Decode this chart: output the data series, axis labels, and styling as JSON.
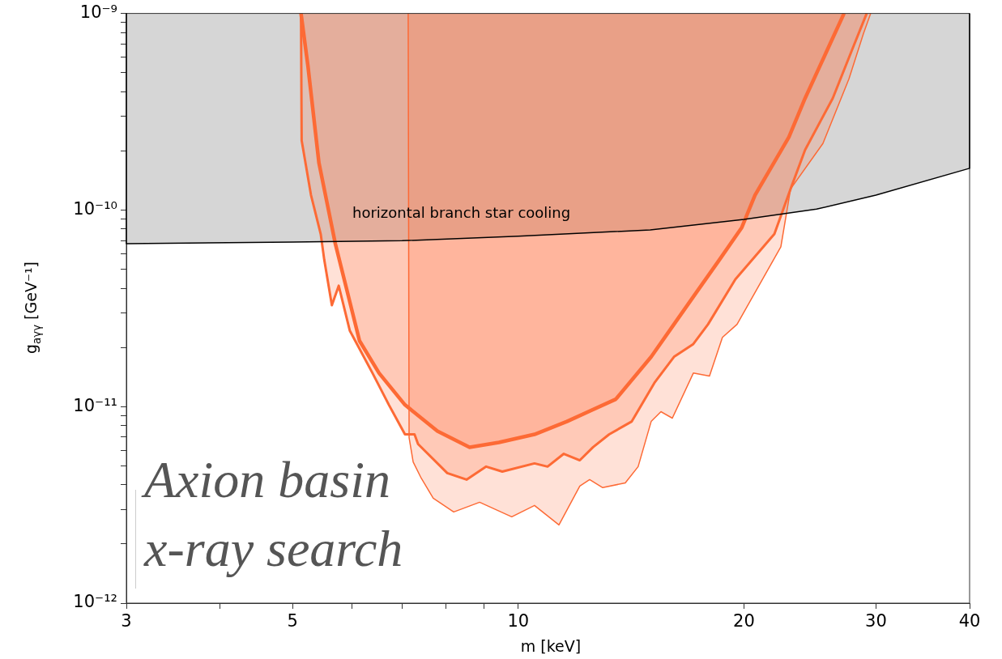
{
  "chart_data": {
    "type": "area",
    "xlabel": "m [keV]",
    "ylabel": "g$_{aγγ}$ [GeV⁻¹]",
    "log": "xy",
    "legend": false,
    "grid": false,
    "xlim": [
      3,
      40
    ],
    "xticks": [
      3,
      {
        "value": 4,
        "label": null
      },
      5,
      {
        "value": 6,
        "label": null
      },
      {
        "value": 7,
        "label": null
      },
      {
        "value": 8,
        "label": null
      },
      {
        "value": 9,
        "label": null
      },
      10,
      20,
      30,
      40
    ],
    "ylim": [
      1e-12,
      1e-09
    ],
    "yticks": [
      {
        "value": 1e-12,
        "label": "10⁻¹²"
      },
      {
        "value": 2e-12,
        "label": null
      },
      {
        "value": 3e-12,
        "label": null
      },
      {
        "value": 4e-12,
        "label": null
      },
      {
        "value": 5e-12,
        "label": null
      },
      {
        "value": 6e-12,
        "label": null
      },
      {
        "value": 7e-12,
        "label": null
      },
      {
        "value": 8e-12,
        "label": null
      },
      {
        "value": 9e-12,
        "label": null
      },
      {
        "value": 1e-11,
        "label": "10⁻¹¹"
      },
      {
        "value": 2e-11,
        "label": null
      },
      {
        "value": 3e-11,
        "label": null
      },
      {
        "value": 4e-11,
        "label": null
      },
      {
        "value": 5e-11,
        "label": null
      },
      {
        "value": 6e-11,
        "label": null
      },
      {
        "value": 7e-11,
        "label": null
      },
      {
        "value": 8e-11,
        "label": null
      },
      {
        "value": 9e-11,
        "label": null
      },
      {
        "value": 1e-10,
        "label": "10⁻¹⁰"
      },
      {
        "value": 2e-10,
        "label": null
      },
      {
        "value": 3e-10,
        "label": null
      },
      {
        "value": 4e-10,
        "label": null
      },
      {
        "value": 5e-10,
        "label": null
      },
      {
        "value": 6e-10,
        "label": null
      },
      {
        "value": 7e-10,
        "label": null
      },
      {
        "value": 8e-10,
        "label": null
      },
      {
        "value": 9e-10,
        "label": null
      },
      {
        "value": 1e-09,
        "label": "10⁻⁹"
      }
    ],
    "series": [
      {
        "color": "#d6d6d6",
        "x": [
          3,
          3,
          5,
          7,
          10,
          15,
          20,
          25,
          30,
          40,
          40
        ],
        "values": [
          1e-09,
          6.74e-11,
          6.87e-11,
          6.98e-11,
          7.35e-11,
          7.92e-11,
          8.95e-11,
          1.01e-10,
          1.19e-10,
          1.63e-10,
          1e-09
        ]
      },
      {
        "color": "#fd6a35",
        "x": [
          7.13,
          7.15,
          7.24,
          7.42,
          7.7,
          8.2,
          8.88,
          9.8,
          10.51,
          11.33,
          12.08,
          12.45,
          12.96,
          13.89,
          14.45,
          15.04,
          15.5,
          16.05,
          17.12,
          17.99,
          18.72,
          19.58,
          22.4,
          23.08,
          25.49,
          27.61,
          28.87,
          29.52
        ],
        "values": [
          1e-09,
          6.95e-12,
          5.23e-12,
          4.33e-12,
          3.42e-12,
          2.91e-12,
          3.26e-12,
          2.75e-12,
          3.14e-12,
          2.5e-12,
          3.94e-12,
          4.25e-12,
          3.87e-12,
          4.09e-12,
          4.95e-12,
          8.4e-12,
          9.42e-12,
          8.73e-12,
          1.48e-11,
          1.43e-11,
          2.25e-11,
          2.62e-11,
          6.49e-11,
          1.28e-10,
          2.18e-10,
          4.64e-10,
          7.89e-10,
          1e-09
        ]
      },
      {
        "color": "#fd6a35",
        "x": [
          5.13,
          5.14,
          5.29,
          5.45,
          5.51,
          5.64,
          5.76,
          5.96,
          6.39,
          6.72,
          7.06,
          7.27,
          7.35,
          8.04,
          8.53,
          9.06,
          9.52,
          10.51,
          10.94,
          11.5,
          12.08,
          12.58,
          13.22,
          14.17,
          15.19,
          16.13,
          17.12,
          17.91,
          19.48,
          21.96,
          23.08,
          24.13,
          26.27,
          27.88,
          29.16
        ],
        "values": [
          1e-09,
          2.26e-10,
          1.19e-10,
          7.55e-11,
          5.57e-11,
          3.28e-11,
          4.12e-11,
          2.43e-11,
          1.48e-11,
          1.02e-11,
          7.22e-12,
          7.22e-12,
          6.45e-12,
          4.59e-12,
          4.25e-12,
          4.95e-12,
          4.67e-12,
          5.14e-12,
          4.95e-12,
          5.75e-12,
          5.33e-12,
          6.21e-12,
          7.22e-12,
          8.4e-12,
          1.32e-11,
          1.79e-11,
          2.08e-11,
          2.62e-11,
          4.44e-11,
          7.55e-11,
          1.28e-10,
          2.02e-10,
          3.7e-10,
          6.53e-10,
          1e-09
        ]
      },
      {
        "color": "#fd6a35",
        "x": [
          5.13,
          5.24,
          5.42,
          5.7,
          6.14,
          6.52,
          7.06,
          7.8,
          8.61,
          9.42,
          10.51,
          11.61,
          13.49,
          15.04,
          16.13,
          17.29,
          18.54,
          19.87,
          20.69,
          22.96,
          24.13,
          27.2
        ],
        "values": [
          1e-09,
          5.41e-10,
          1.74e-10,
          6.74e-11,
          2.16e-11,
          1.48e-11,
          1.02e-11,
          7.5e-12,
          6.21e-12,
          6.57e-12,
          7.22e-12,
          8.4e-12,
          1.09e-11,
          1.79e-11,
          2.62e-11,
          3.82e-11,
          5.57e-11,
          8.15e-11,
          1.19e-10,
          2.35e-10,
          3.7e-10,
          1e-09
        ]
      }
    ],
    "annotations": [
      "horizontal branch star cooling",
      "Axion basin x-ray search"
    ]
  }
}
